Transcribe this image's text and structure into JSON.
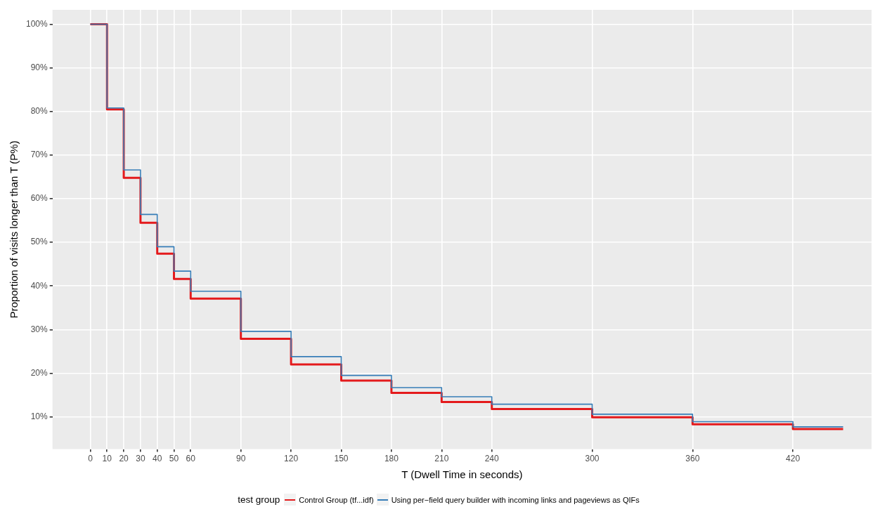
{
  "chart_data": {
    "type": "step",
    "xlabel": "T (Dwell Time in seconds)",
    "ylabel": "Proportion of visits longer than T (P%)",
    "legend_title": "test group",
    "xlim": [
      -22.6,
      467
    ],
    "xticks": [
      0,
      10,
      20,
      30,
      40,
      50,
      60,
      90,
      120,
      150,
      180,
      210,
      240,
      300,
      360,
      420
    ],
    "ylim": [
      2.6,
      103.3
    ],
    "yticks": [
      {
        "value": 10,
        "label": "10%"
      },
      {
        "value": 20,
        "label": "20%"
      },
      {
        "value": 30,
        "label": "30%"
      },
      {
        "value": 40,
        "label": "40%"
      },
      {
        "value": 50,
        "label": "50%"
      },
      {
        "value": 60,
        "label": "60%"
      },
      {
        "value": 70,
        "label": "70%"
      },
      {
        "value": 80,
        "label": "80%"
      },
      {
        "value": 90,
        "label": "90%"
      },
      {
        "value": 100,
        "label": "100%"
      }
    ],
    "x": [
      0,
      10,
      20,
      30,
      40,
      50,
      60,
      90,
      120,
      150,
      180,
      210,
      240,
      300,
      360,
      420,
      450
    ],
    "series": [
      {
        "name": "Control Group (tf...idf)",
        "color": "#e41a1c",
        "values": [
          100,
          80.5,
          64.8,
          54.5,
          47.4,
          41.6,
          37.1,
          27.9,
          22.0,
          18.3,
          15.5,
          13.4,
          11.8,
          9.9,
          8.3,
          7.2,
          7.2
        ]
      },
      {
        "name": "Using per−field query builder with incoming links and pageviews as QIFs",
        "color": "#377eb8",
        "values": [
          100,
          80.8,
          66.6,
          56.4,
          49.0,
          43.4,
          38.8,
          29.6,
          23.8,
          19.5,
          16.7,
          14.6,
          12.9,
          10.6,
          8.9,
          7.7,
          7.7
        ]
      }
    ],
    "grid": true,
    "legend": "bottom",
    "line_style": "solid"
  }
}
